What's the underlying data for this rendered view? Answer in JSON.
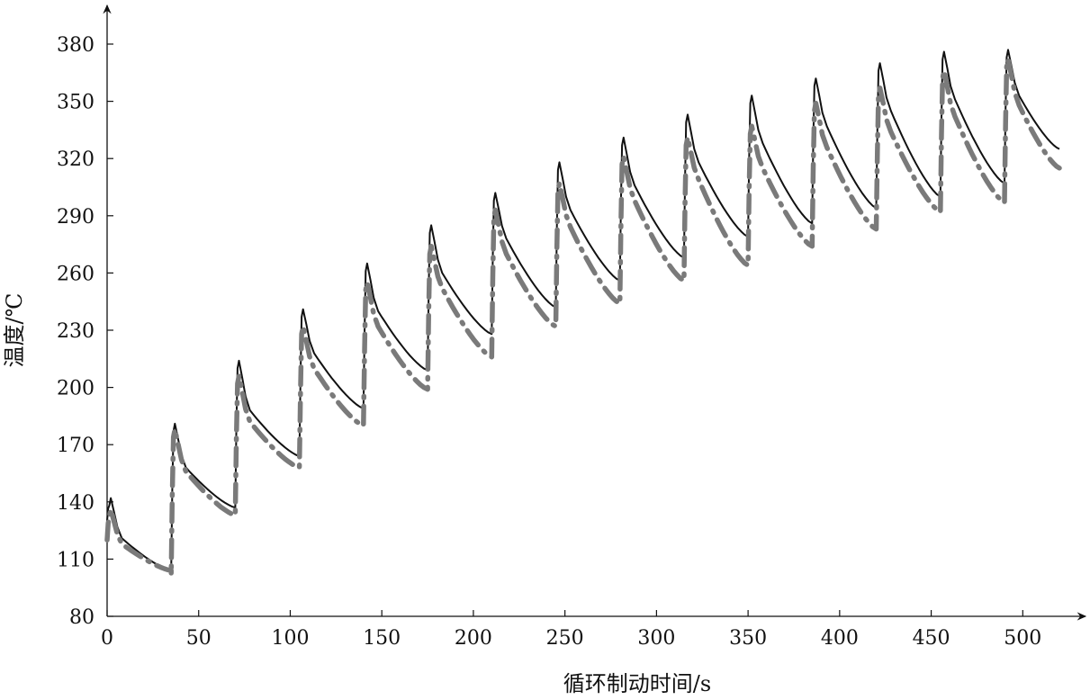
{
  "chart_data": {
    "type": "line",
    "title": "",
    "xlabel": "循环制动时间/s",
    "ylabel": "温度/℃",
    "xlim": [
      0,
      520
    ],
    "ylim": [
      80,
      380
    ],
    "xticks": [
      0,
      50,
      100,
      150,
      200,
      250,
      300,
      350,
      400,
      450,
      500
    ],
    "yticks": [
      80,
      110,
      140,
      170,
      200,
      230,
      260,
      290,
      320,
      350,
      380
    ],
    "grid": false,
    "legend": "none",
    "period_s": 35,
    "series": [
      {
        "line_style": "solid",
        "color": "#111111",
        "cycles": [
          {
            "start": 0,
            "start_temp": 130,
            "peak_time": 2,
            "peak": 142,
            "knee_time": 8,
            "knee_temp": 121,
            "end_temp": 104
          },
          {
            "start": 35,
            "start_temp": 104,
            "peak_time": 37,
            "peak": 181,
            "knee_time": 43,
            "knee_temp": 158,
            "end_temp": 137
          },
          {
            "start": 70,
            "start_temp": 137,
            "peak_time": 72,
            "peak": 214,
            "knee_time": 78,
            "knee_temp": 188,
            "end_temp": 164
          },
          {
            "start": 105,
            "start_temp": 164,
            "peak_time": 107,
            "peak": 241,
            "knee_time": 113,
            "knee_temp": 218,
            "end_temp": 189
          },
          {
            "start": 140,
            "start_temp": 189,
            "peak_time": 142,
            "peak": 265,
            "knee_time": 148,
            "knee_temp": 240,
            "end_temp": 209
          },
          {
            "start": 175,
            "start_temp": 209,
            "peak_time": 177,
            "peak": 285,
            "knee_time": 183,
            "knee_temp": 260,
            "end_temp": 228
          },
          {
            "start": 210,
            "start_temp": 228,
            "peak_time": 212,
            "peak": 302,
            "knee_time": 218,
            "knee_temp": 278,
            "end_temp": 242
          },
          {
            "start": 245,
            "start_temp": 242,
            "peak_time": 247,
            "peak": 318,
            "knee_time": 253,
            "knee_temp": 293,
            "end_temp": 256
          },
          {
            "start": 280,
            "start_temp": 256,
            "peak_time": 282,
            "peak": 331,
            "knee_time": 288,
            "knee_temp": 306,
            "end_temp": 268
          },
          {
            "start": 315,
            "start_temp": 268,
            "peak_time": 317,
            "peak": 343,
            "knee_time": 323,
            "knee_temp": 318,
            "end_temp": 279
          },
          {
            "start": 350,
            "start_temp": 279,
            "peak_time": 352,
            "peak": 353,
            "knee_time": 358,
            "knee_temp": 328,
            "end_temp": 286
          },
          {
            "start": 385,
            "start_temp": 286,
            "peak_time": 387,
            "peak": 362,
            "knee_time": 393,
            "knee_temp": 337,
            "end_temp": 294
          },
          {
            "start": 420,
            "start_temp": 294,
            "peak_time": 422,
            "peak": 370,
            "knee_time": 428,
            "knee_temp": 345,
            "end_temp": 300
          },
          {
            "start": 455,
            "start_temp": 300,
            "peak_time": 457,
            "peak": 376,
            "knee_time": 463,
            "knee_temp": 351,
            "end_temp": 307
          },
          {
            "start": 490,
            "start_temp": 307,
            "peak_time": 492,
            "peak": 377,
            "knee_time": 498,
            "knee_temp": 353,
            "end_temp": 325
          }
        ]
      },
      {
        "line_style": "dash-dot",
        "color": "#7a7a7a",
        "cycles": [
          {
            "start": 0,
            "start_temp": 120,
            "peak_time": 2,
            "peak": 136,
            "knee_time": 8,
            "knee_temp": 118,
            "end_temp": 104
          },
          {
            "start": 35,
            "start_temp": 102,
            "peak_time": 37,
            "peak": 178,
            "knee_time": 43,
            "knee_temp": 156,
            "end_temp": 133
          },
          {
            "start": 70,
            "start_temp": 133,
            "peak_time": 72,
            "peak": 206,
            "knee_time": 78,
            "knee_temp": 182,
            "end_temp": 158
          },
          {
            "start": 105,
            "start_temp": 158,
            "peak_time": 107,
            "peak": 232,
            "knee_time": 113,
            "knee_temp": 210,
            "end_temp": 180
          },
          {
            "start": 140,
            "start_temp": 180,
            "peak_time": 142,
            "peak": 255,
            "knee_time": 148,
            "knee_temp": 232,
            "end_temp": 199
          },
          {
            "start": 175,
            "start_temp": 199,
            "peak_time": 177,
            "peak": 274,
            "knee_time": 183,
            "knee_temp": 252,
            "end_temp": 216
          },
          {
            "start": 210,
            "start_temp": 216,
            "peak_time": 212,
            "peak": 293,
            "knee_time": 218,
            "knee_temp": 270,
            "end_temp": 232
          },
          {
            "start": 245,
            "start_temp": 232,
            "peak_time": 247,
            "peak": 307,
            "knee_time": 253,
            "knee_temp": 284,
            "end_temp": 244
          },
          {
            "start": 280,
            "start_temp": 244,
            "peak_time": 282,
            "peak": 321,
            "knee_time": 288,
            "knee_temp": 298,
            "end_temp": 256
          },
          {
            "start": 315,
            "start_temp": 256,
            "peak_time": 317,
            "peak": 331,
            "knee_time": 323,
            "knee_temp": 309,
            "end_temp": 264
          },
          {
            "start": 350,
            "start_temp": 264,
            "peak_time": 352,
            "peak": 337,
            "knee_time": 358,
            "knee_temp": 315,
            "end_temp": 274
          },
          {
            "start": 385,
            "start_temp": 274,
            "peak_time": 387,
            "peak": 349,
            "knee_time": 393,
            "knee_temp": 326,
            "end_temp": 283
          },
          {
            "start": 420,
            "start_temp": 283,
            "peak_time": 422,
            "peak": 357,
            "knee_time": 428,
            "knee_temp": 334,
            "end_temp": 292
          },
          {
            "start": 455,
            "start_temp": 292,
            "peak_time": 457,
            "peak": 366,
            "knee_time": 463,
            "knee_temp": 342,
            "end_temp": 297
          },
          {
            "start": 490,
            "start_temp": 297,
            "peak_time": 492,
            "peak": 372,
            "knee_time": 498,
            "knee_temp": 348,
            "end_temp": 315
          }
        ]
      }
    ]
  }
}
